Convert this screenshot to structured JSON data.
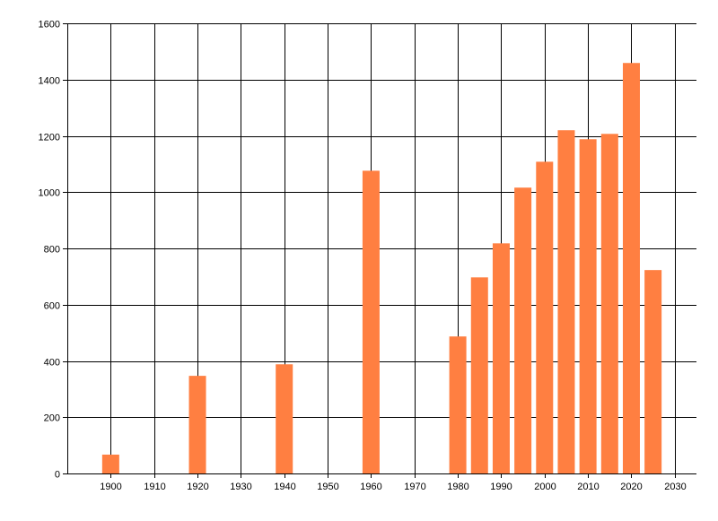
{
  "chart_data": {
    "type": "bar",
    "title": "",
    "xlabel": "",
    "ylabel": "",
    "x": [
      1900,
      1920,
      1940,
      1960,
      1980,
      1985,
      1990,
      1995,
      2000,
      2005,
      2010,
      2015,
      2020,
      2025
    ],
    "values": [
      67,
      347,
      388,
      1076,
      487,
      697,
      818,
      1016,
      1108,
      1220,
      1188,
      1207,
      1459,
      723
    ],
    "xlim": [
      1890,
      2035
    ],
    "ylim": [
      0,
      1600
    ],
    "xticks": [
      1900,
      1910,
      1920,
      1930,
      1940,
      1950,
      1960,
      1970,
      1980,
      1990,
      2000,
      2010,
      2020,
      2030
    ],
    "yticks": [
      0,
      200,
      400,
      600,
      800,
      1000,
      1200,
      1400,
      1600
    ],
    "grid": true,
    "bar_color": "#ff7f41",
    "grid_color": "#000000"
  }
}
